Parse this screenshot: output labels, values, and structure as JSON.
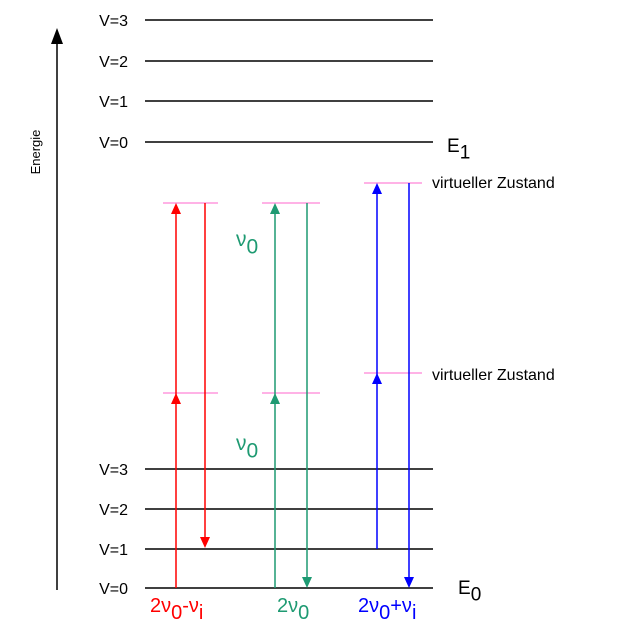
{
  "axis_label": "Energie",
  "upper_levels": [
    "V=3",
    "V=2",
    "V=1",
    "V=0"
  ],
  "upper_state": {
    "symbol": "E",
    "index": "1"
  },
  "lower_levels": [
    "V=3",
    "V=2",
    "V=1",
    "V=0"
  ],
  "lower_state": {
    "symbol": "E",
    "index": "0"
  },
  "virtual_states": [
    "virtueller Zustand",
    "virtueller Zustand"
  ],
  "photon_labels": [
    {
      "symbol": "ν",
      "index": "0"
    },
    {
      "symbol": "ν",
      "index": "0"
    }
  ],
  "photon_color": "#1e9a72",
  "transitions": [
    {
      "parts": [
        "2ν",
        "0",
        "-ν",
        "i"
      ],
      "color": "#ff0000"
    },
    {
      "parts": [
        "2ν",
        "0"
      ],
      "color": "#1e9a72"
    },
    {
      "parts": [
        "2ν",
        "0",
        "+ν",
        "i"
      ],
      "color": "#0000ff"
    }
  ]
}
